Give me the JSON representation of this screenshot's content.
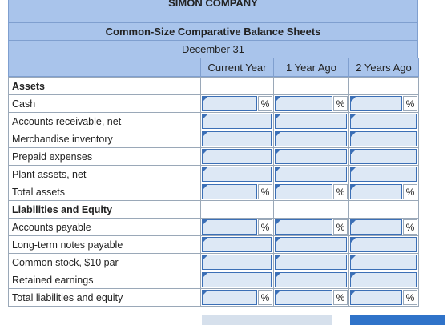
{
  "header": {
    "company": "SIMON COMPANY",
    "title": "Common-Size Comparative Balance Sheets",
    "date": "December 31",
    "columns": [
      "Current Year",
      "1 Year Ago",
      "2 Years Ago"
    ]
  },
  "sections": [
    {
      "heading": "Assets",
      "rows": [
        {
          "label": "Cash",
          "percent": [
            "%",
            "%",
            "%"
          ]
        },
        {
          "label": "Accounts receivable, net"
        },
        {
          "label": "Merchandise inventory"
        },
        {
          "label": "Prepaid expenses"
        },
        {
          "label": "Plant assets, net"
        },
        {
          "label": "Total assets",
          "percent": [
            "%",
            "%",
            "%"
          ]
        }
      ]
    },
    {
      "heading": "Liabilities and Equity",
      "rows": [
        {
          "label": "Accounts payable",
          "percent": [
            "%",
            "%",
            "%"
          ]
        },
        {
          "label": "Long-term notes payable"
        },
        {
          "label": "Common stock, $10 par"
        },
        {
          "label": "Retained earnings"
        },
        {
          "label": "Total liabilities and equity",
          "percent": [
            "%",
            "%",
            "%"
          ]
        }
      ]
    }
  ]
}
